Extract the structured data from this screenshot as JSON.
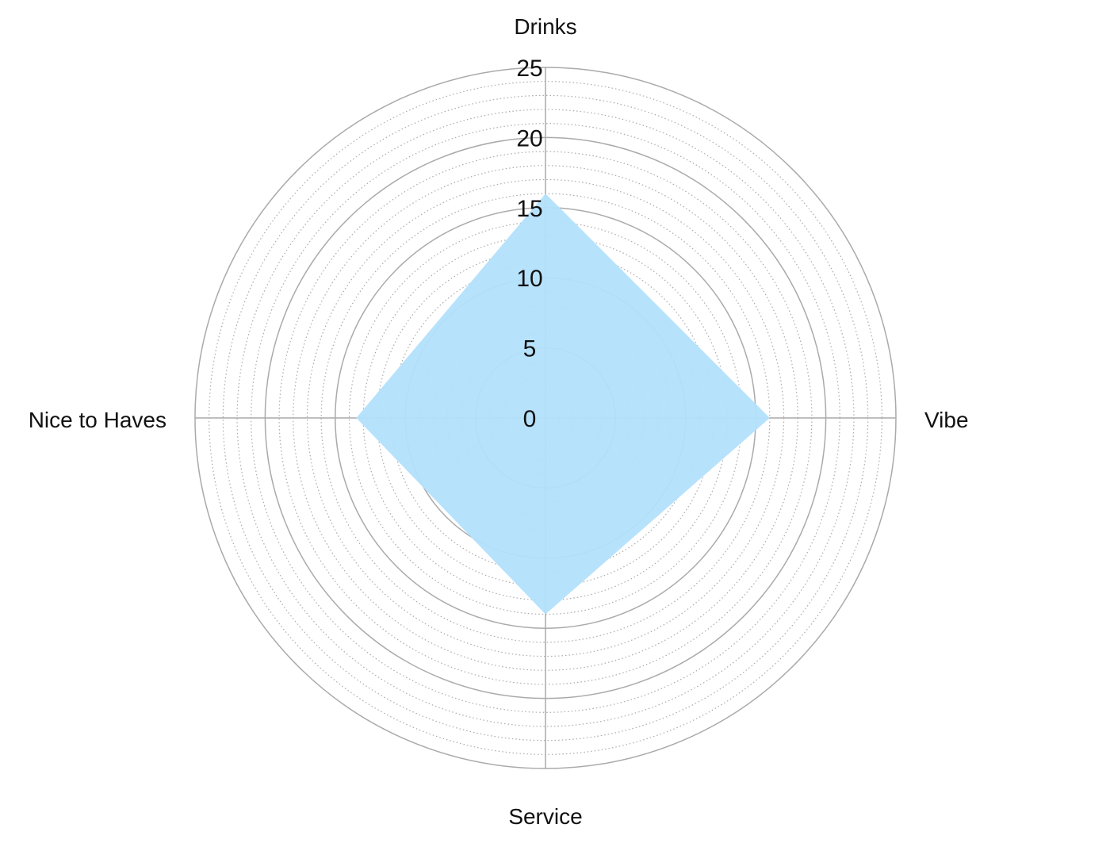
{
  "chart_data": {
    "type": "radar",
    "title": "",
    "axes": [
      "Drinks",
      "Vibe",
      "Service",
      "Nice to Haves"
    ],
    "series": [
      {
        "values": [
          16,
          16,
          14,
          13.5
        ],
        "color": "#b3e0fc"
      }
    ],
    "rlim": [
      0,
      25
    ],
    "major_ticks": [
      0,
      5,
      10,
      15,
      20,
      25
    ],
    "minor_tick_step": 1,
    "grid": true,
    "grid_color": "#aaaaaa"
  }
}
